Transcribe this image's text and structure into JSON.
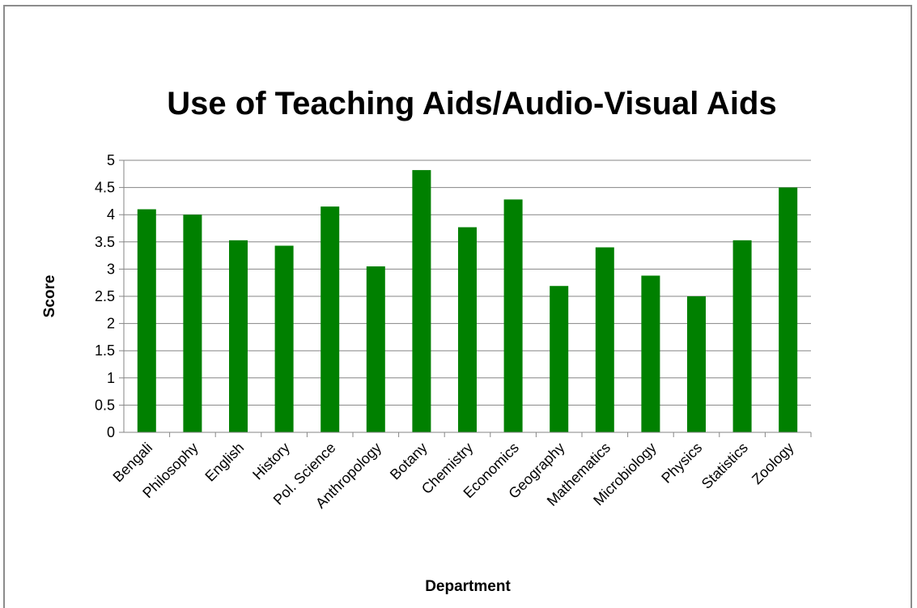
{
  "chart_data": {
    "type": "bar",
    "title": "Use of Teaching Aids/Audio-Visual Aids",
    "xlabel": "Department",
    "ylabel": "Score",
    "ylim": [
      0,
      5
    ],
    "yticks": [
      "0",
      "0.5",
      "1",
      "1.5",
      "2",
      "2.5",
      "3",
      "3.5",
      "4",
      "4.5",
      "5"
    ],
    "grid": true,
    "legend": "none",
    "bar_color": "#008000",
    "categories": [
      "Bengali",
      "Philosophy",
      "English",
      "History",
      "Pol. Science",
      "Anthropology",
      "Botany",
      "Chemistry",
      "Economics",
      "Geography",
      "Mathematics",
      "Microbiology",
      "Physics",
      "Statistics",
      "Zoology"
    ],
    "values": [
      4.1,
      4.0,
      3.53,
      3.43,
      4.15,
      3.05,
      4.82,
      3.77,
      4.28,
      2.69,
      3.4,
      2.88,
      2.5,
      3.53,
      4.5
    ]
  }
}
